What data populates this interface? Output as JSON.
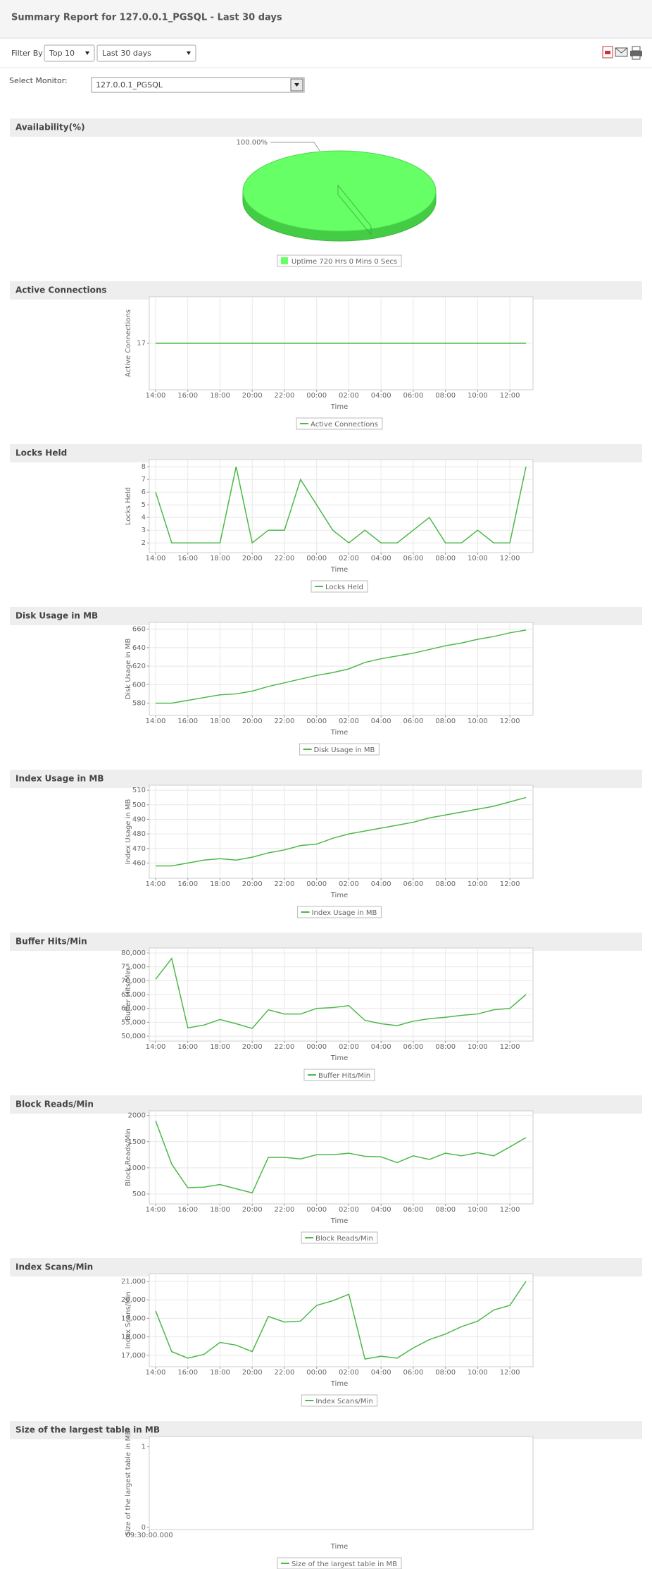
{
  "header": {
    "title": "Summary Report for 127.0.0.1_PGSQL - Last 30 days"
  },
  "filter": {
    "label": "Filter By",
    "top": "Top 10",
    "period": "Last 30 days"
  },
  "monitor": {
    "label": "Select Monitor:",
    "value": "127.0.0.1_PGSQL"
  },
  "chart_data": [
    {
      "type": "pie",
      "title": "Availability(%)",
      "categories": [
        "Uptime 720 Hrs 0 Mins 0 Secs"
      ],
      "values": [
        100
      ],
      "value_labels": [
        "100.00%"
      ],
      "colors": [
        "#66ff66"
      ]
    },
    {
      "type": "line",
      "title": "Active Connections",
      "y_label": "Active Connections",
      "x_label": "Time",
      "categories": [
        "14:00",
        null,
        "16:00",
        null,
        "18:00",
        null,
        "20:00",
        null,
        "22:00",
        null,
        "00:00",
        null,
        "02:00",
        null,
        "04:00",
        null,
        "06:00",
        null,
        "08:00",
        null,
        "10:00",
        null,
        "12:00",
        null
      ],
      "series": [
        {
          "name": "Active Connections",
          "color": "#4cb848",
          "values": [
            17,
            17,
            17,
            17,
            17,
            17,
            17,
            17,
            17,
            17,
            17,
            17,
            17,
            17,
            17,
            17,
            17,
            17,
            17,
            17,
            17,
            17,
            17,
            17
          ]
        }
      ],
      "ylim": [
        10,
        24
      ],
      "yticks": [
        17
      ],
      "grid": true
    },
    {
      "type": "line",
      "title": "Locks Held",
      "y_label": "Locks Held",
      "x_label": "Time",
      "categories": [
        "14:00",
        null,
        "16:00",
        null,
        "18:00",
        null,
        "20:00",
        null,
        "22:00",
        null,
        "00:00",
        null,
        "02:00",
        null,
        "04:00",
        null,
        "06:00",
        null,
        "08:00",
        null,
        "10:00",
        null,
        "12:00",
        null
      ],
      "series": [
        {
          "name": "Locks Held",
          "color": "#4cb848",
          "values": [
            6,
            2,
            2,
            2,
            2,
            8,
            2,
            3,
            3,
            7,
            5,
            3,
            2,
            3,
            2,
            2,
            3,
            4,
            2,
            2,
            3,
            2,
            2,
            8
          ]
        }
      ],
      "ylim": [
        1.4,
        8.4
      ],
      "yticks": [
        2,
        3,
        4,
        5,
        6,
        7,
        8
      ],
      "grid": true
    },
    {
      "type": "line",
      "title": "Disk Usage in MB",
      "y_label": "Disk Usage in MB",
      "x_label": "Time",
      "categories": [
        "14:00",
        null,
        "16:00",
        null,
        "18:00",
        null,
        "20:00",
        null,
        "22:00",
        null,
        "00:00",
        null,
        "02:00",
        null,
        "04:00",
        null,
        "06:00",
        null,
        "08:00",
        null,
        "10:00",
        null,
        "12:00",
        null
      ],
      "series": [
        {
          "name": "Disk Usage in MB",
          "color": "#4cb848",
          "values": [
            580,
            580,
            583,
            586,
            589,
            590,
            593,
            598,
            602,
            606,
            610,
            613,
            617,
            624,
            628,
            631,
            634,
            638,
            642,
            645,
            649,
            652,
            656,
            659
          ]
        }
      ],
      "ylim": [
        569,
        665
      ],
      "yticks": [
        580,
        600,
        620,
        640,
        660
      ],
      "grid": true
    },
    {
      "type": "line",
      "title": "Index Usage in MB",
      "y_label": "Index Usage in MB",
      "x_label": "Time",
      "categories": [
        "14:00",
        null,
        "16:00",
        null,
        "18:00",
        null,
        "20:00",
        null,
        "22:00",
        null,
        "00:00",
        null,
        "02:00",
        null,
        "04:00",
        null,
        "06:00",
        null,
        "08:00",
        null,
        "10:00",
        null,
        "12:00",
        null
      ],
      "series": [
        {
          "name": "Index Usage in MB",
          "color": "#4cb848",
          "values": [
            458,
            458,
            460,
            462,
            463,
            462,
            464,
            467,
            469,
            472,
            473,
            477,
            480,
            482,
            484,
            486,
            488,
            491,
            493,
            495,
            497,
            499,
            502,
            505
          ]
        }
      ],
      "ylim": [
        451,
        512
      ],
      "yticks": [
        460,
        470,
        480,
        490,
        500,
        510
      ],
      "grid": true
    },
    {
      "type": "line",
      "title": "Buffer Hits/Min",
      "y_label": "Buffer Hits/Min",
      "x_label": "Time",
      "categories": [
        "14:00",
        null,
        "16:00",
        null,
        "18:00",
        null,
        "20:00",
        null,
        "22:00",
        null,
        "00:00",
        null,
        "02:00",
        null,
        "04:00",
        null,
        "06:00",
        null,
        "08:00",
        null,
        "10:00",
        null,
        "12:00",
        null
      ],
      "series": [
        {
          "name": "Buffer Hits/Min",
          "color": "#4cb848",
          "values": [
            70500,
            78000,
            53000,
            54000,
            56000,
            54500,
            52800,
            59500,
            58000,
            58000,
            60000,
            60300,
            61000,
            55700,
            54500,
            53800,
            55400,
            56300,
            56800,
            57500,
            58000,
            59500,
            60000,
            65000
          ]
        }
      ],
      "ylim": [
        49000,
        81000
      ],
      "yticks": [
        {
          "value": 50000,
          "label": "50,000"
        },
        {
          "value": 55000,
          "label": "55,000"
        },
        {
          "value": 60000,
          "label": "60,000"
        },
        {
          "value": 65000,
          "label": "65,000"
        },
        {
          "value": 70000,
          "label": "70,000"
        },
        {
          "value": 75000,
          "label": "75,000"
        },
        {
          "value": 80000,
          "label": "80,000"
        }
      ],
      "grid": true
    },
    {
      "type": "line",
      "title": "Block Reads/Min",
      "y_label": "Block Reads/Min",
      "x_label": "Time",
      "categories": [
        "14:00",
        null,
        "16:00",
        null,
        "18:00",
        null,
        "20:00",
        null,
        "22:00",
        null,
        "00:00",
        null,
        "02:00",
        null,
        "04:00",
        null,
        "06:00",
        null,
        "08:00",
        null,
        "10:00",
        null,
        "12:00",
        null
      ],
      "series": [
        {
          "name": "Block Reads/Min",
          "color": "#4cb848",
          "values": [
            1900,
            1070,
            620,
            630,
            680,
            600,
            520,
            1200,
            1200,
            1170,
            1250,
            1250,
            1280,
            1220,
            1210,
            1100,
            1230,
            1160,
            1280,
            1230,
            1290,
            1230,
            1400,
            1580
          ]
        }
      ],
      "ylim": [
        350,
        2050
      ],
      "yticks": [
        500,
        1000,
        1500,
        2000
      ],
      "grid": true
    },
    {
      "type": "line",
      "title": "Index Scans/Min",
      "y_label": "Index Scans/Min",
      "x_label": "Time",
      "categories": [
        "14:00",
        null,
        "16:00",
        null,
        "18:00",
        null,
        "20:00",
        null,
        "22:00",
        null,
        "00:00",
        null,
        "02:00",
        null,
        "04:00",
        null,
        "06:00",
        null,
        "08:00",
        null,
        "10:00",
        null,
        "12:00",
        null
      ],
      "series": [
        {
          "name": "Index Scans/Min",
          "color": "#4cb848",
          "values": [
            19400,
            17200,
            16850,
            17050,
            17700,
            17550,
            17200,
            19100,
            18800,
            18850,
            19700,
            19950,
            20300,
            16800,
            16950,
            16850,
            17400,
            17850,
            18150,
            18550,
            18850,
            19450,
            19700,
            21000
          ]
        }
      ],
      "ylim": [
        16500,
        21300
      ],
      "yticks": [
        {
          "value": 17000,
          "label": "17,000"
        },
        {
          "value": 18000,
          "label": "18,000"
        },
        {
          "value": 19000,
          "label": "19,000"
        },
        {
          "value": 20000,
          "label": "20,000"
        },
        {
          "value": 21000,
          "label": "21,000"
        }
      ],
      "grid": true
    },
    {
      "type": "line",
      "title": "Size of the largest table in MB",
      "y_label": "Size of the largest table in MB",
      "x_label": "Time",
      "categories": [
        "09:30:00.000"
      ],
      "series": [
        {
          "name": "Size of the largest table in MB",
          "color": "#4cb848",
          "values": [
            null
          ]
        }
      ],
      "ylim": [
        0,
        1.1
      ],
      "yticks": [
        0,
        1
      ],
      "grid": false
    }
  ]
}
